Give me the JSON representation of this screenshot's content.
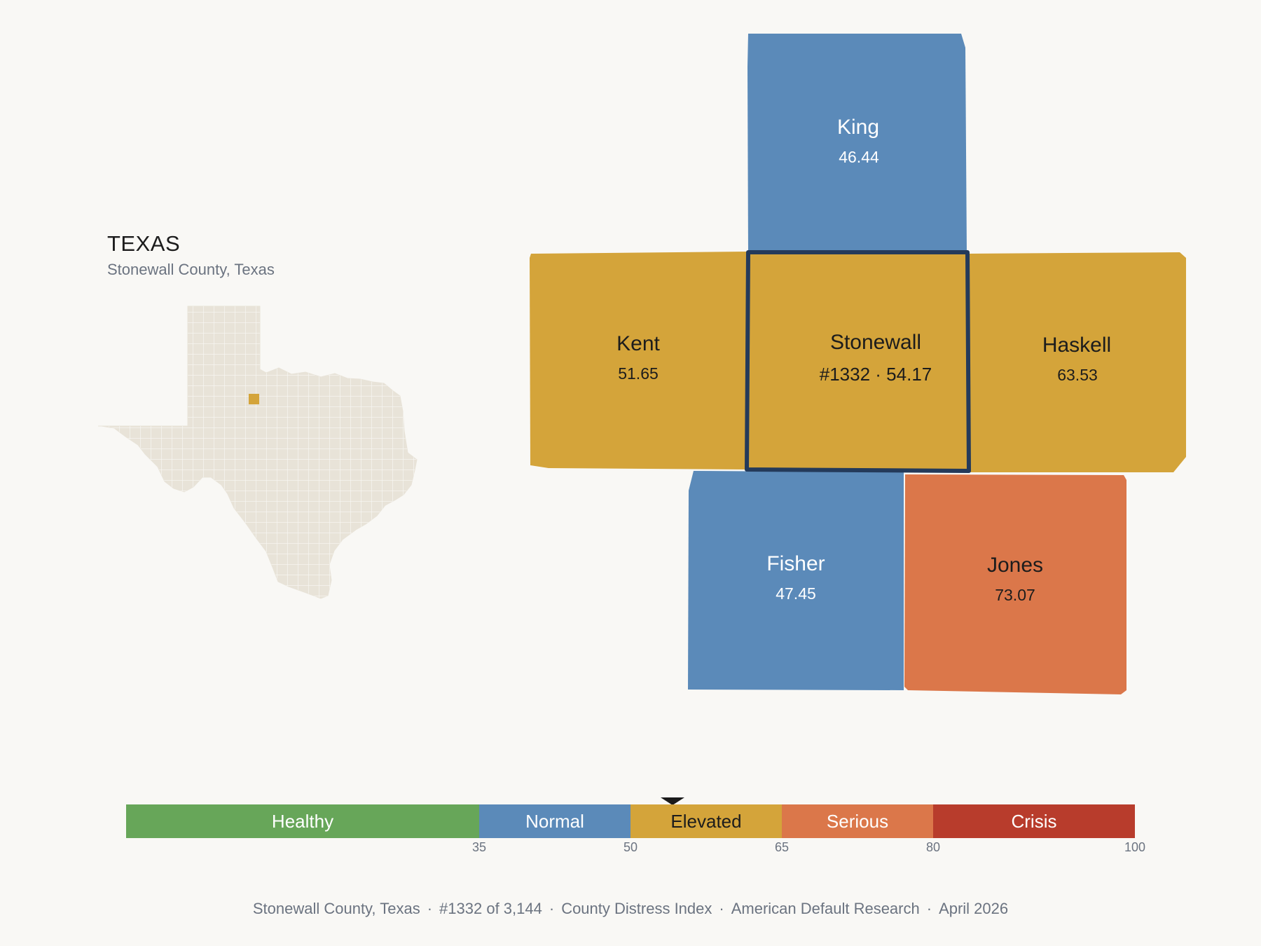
{
  "inset": {
    "title": "TEXAS",
    "subtitle": "Stonewall County, Texas",
    "base_color": "#e8e3d8",
    "highlight_color": "#d4a43a"
  },
  "colors": {
    "normal": "#5b8ab9",
    "elevated": "#d4a43a",
    "serious": "#db774a",
    "outline": "#243a5a"
  },
  "counties": {
    "king": {
      "name": "King",
      "value": "46.44",
      "category": "Normal"
    },
    "kent": {
      "name": "Kent",
      "value": "51.65",
      "category": "Elevated"
    },
    "stonewall": {
      "name": "Stonewall",
      "value": "#1332 · 54.17",
      "category": "Elevated"
    },
    "haskell": {
      "name": "Haskell",
      "value": "63.53",
      "category": "Elevated"
    },
    "fisher": {
      "name": "Fisher",
      "value": "47.45",
      "category": "Normal"
    },
    "jones": {
      "name": "Jones",
      "value": "73.07",
      "category": "Serious"
    }
  },
  "legend": {
    "min": 0,
    "max": 100,
    "marker_value": 54.17,
    "segments": [
      {
        "label": "Healthy",
        "from": 0,
        "to": 35,
        "color": "#67a659",
        "text_color": "#ffffff"
      },
      {
        "label": "Normal",
        "from": 35,
        "to": 50,
        "color": "#5b8ab9",
        "text_color": "#ffffff"
      },
      {
        "label": "Elevated",
        "from": 50,
        "to": 65,
        "color": "#d4a43a",
        "text_color": "#1c1c1c"
      },
      {
        "label": "Serious",
        "from": 65,
        "to": 80,
        "color": "#db774a",
        "text_color": "#ffffff"
      },
      {
        "label": "Crisis",
        "from": 80,
        "to": 100,
        "color": "#b83c2c",
        "text_color": "#ffffff"
      }
    ],
    "ticks": [
      "35",
      "50",
      "65",
      "80",
      "100"
    ]
  },
  "footer": {
    "location": "Stonewall County, Texas",
    "rank": "#1332 of 3,144",
    "index": "County Distress Index",
    "source": "American Default Research",
    "date": "April 2026",
    "separator": "·"
  }
}
